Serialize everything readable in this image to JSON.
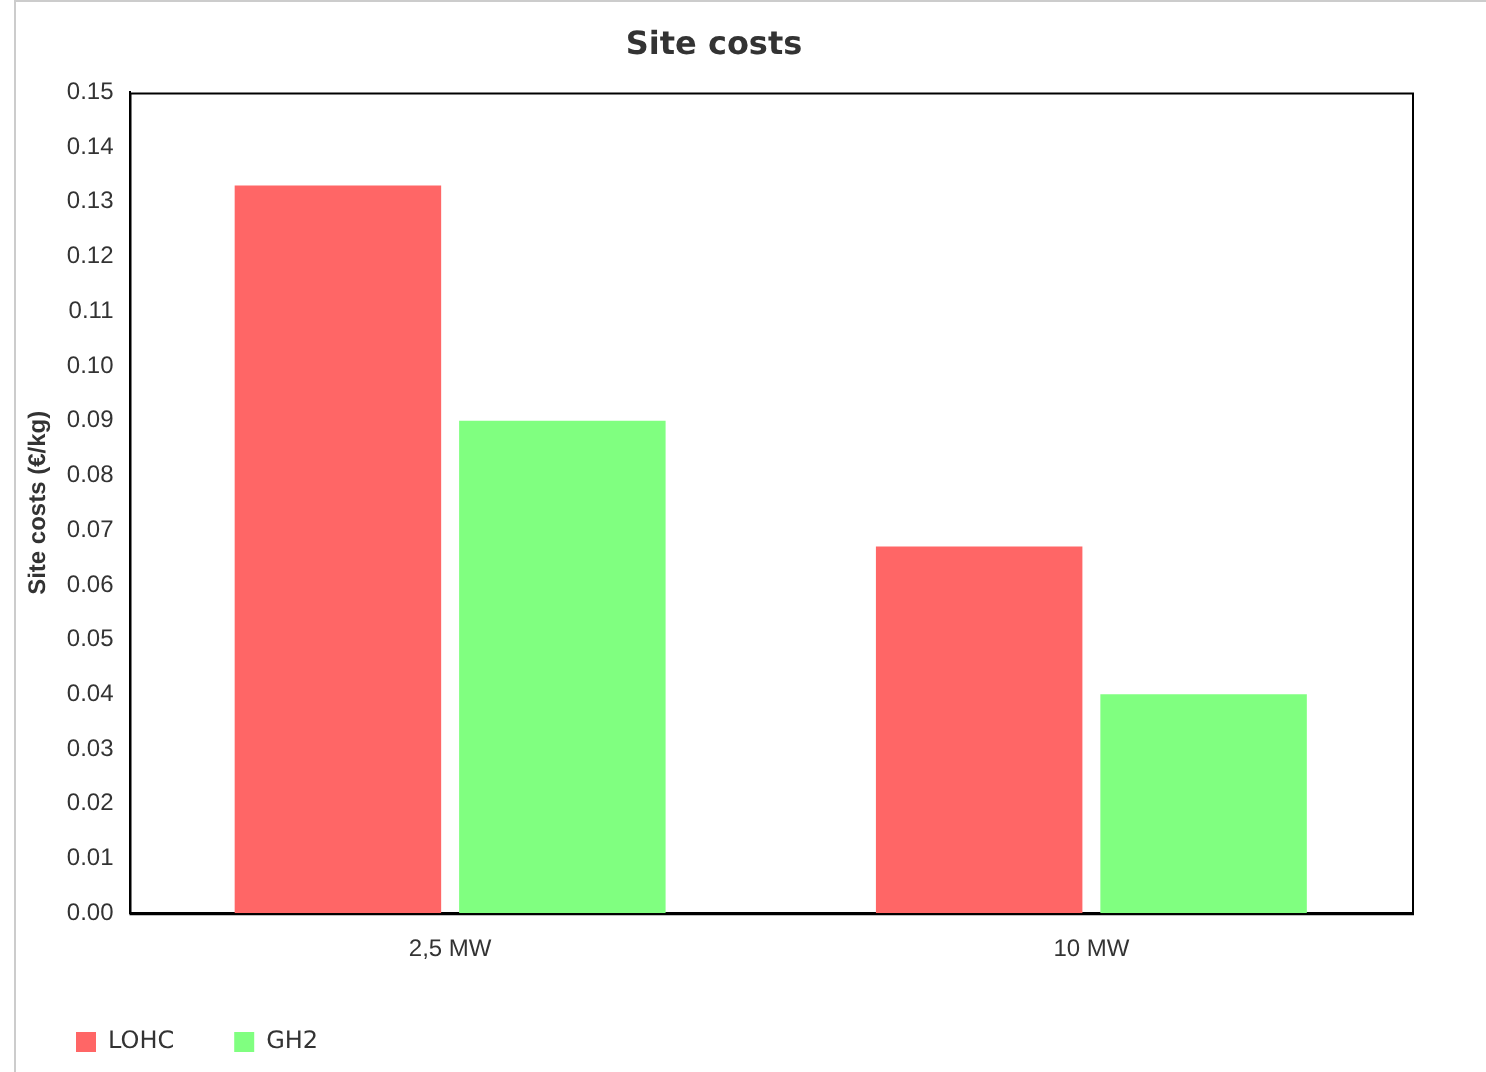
{
  "chart_data": {
    "type": "bar",
    "title": "Site costs",
    "ylabel": "Site costs (€/kg)",
    "categories": [
      "2,5 MW",
      "10 MW"
    ],
    "series": [
      {
        "name": "LOHC",
        "color": "#ff6666",
        "values": [
          0.133,
          0.067
        ]
      },
      {
        "name": "GH2",
        "color": "#80ff80",
        "values": [
          0.09,
          0.04
        ]
      }
    ],
    "ylim": [
      0,
      0.15
    ],
    "yticks": [
      {
        "value": 0,
        "label": "0.00"
      },
      {
        "value": 0.01,
        "label": "0.01"
      },
      {
        "value": 0.02,
        "label": "0.02"
      },
      {
        "value": 0.03,
        "label": "0.03"
      },
      {
        "value": 0.04,
        "label": "0.04"
      },
      {
        "value": 0.05,
        "label": "0.05"
      },
      {
        "value": 0.06,
        "label": "0.06"
      },
      {
        "value": 0.07,
        "label": "0.07"
      },
      {
        "value": 0.08,
        "label": "0.08"
      },
      {
        "value": 0.09,
        "label": "0.09"
      },
      {
        "value": 0.1,
        "label": "0.10"
      },
      {
        "value": 0.11,
        "label": "0.11"
      },
      {
        "value": 0.12,
        "label": "0.12"
      },
      {
        "value": 0.13,
        "label": "0.13"
      },
      {
        "value": 0.14,
        "label": "0.14"
      },
      {
        "value": 0.15,
        "label": "0.15"
      }
    ],
    "grid": false,
    "legend": "bottom left"
  }
}
